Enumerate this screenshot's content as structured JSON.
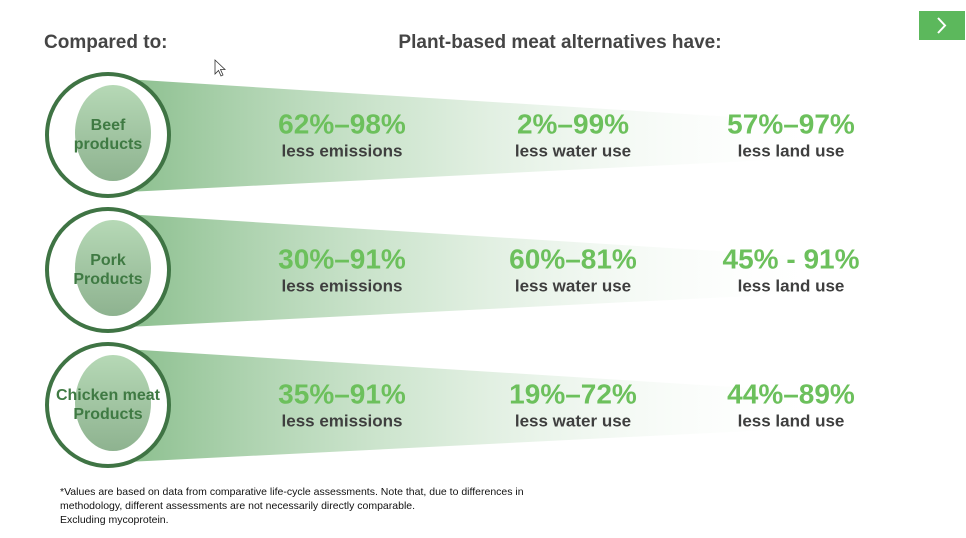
{
  "header": {
    "left": "Compared to:",
    "right": "Plant-based meat alternatives have:"
  },
  "rows": [
    {
      "category": [
        "Beef",
        "products"
      ],
      "metrics": [
        {
          "value": "62%–98%",
          "label": "less emissions"
        },
        {
          "value": "2%–99%",
          "label": "less water use"
        },
        {
          "value": "57%–97%",
          "label": "less land use"
        }
      ]
    },
    {
      "category": [
        "Pork",
        "Products"
      ],
      "metrics": [
        {
          "value": "30%–91%",
          "label": "less emissions"
        },
        {
          "value": "60%–81%",
          "label": "less water use"
        },
        {
          "value": "45% - 91%",
          "label": "less land use"
        }
      ]
    },
    {
      "category": [
        "Chicken meat",
        "Products"
      ],
      "metrics": [
        {
          "value": "35%–91%",
          "label": "less emissions"
        },
        {
          "value": "19%–72%",
          "label": "less water use"
        },
        {
          "value": "44%–89%",
          "label": "less land use"
        }
      ]
    }
  ],
  "footnote": [
    "*Values are based on data from comparative life-cycle assessments. Note that, due to differences in",
    "methodology, different assessments are not necessarily directly comparable.",
    "Excluding mycoprotein."
  ]
}
